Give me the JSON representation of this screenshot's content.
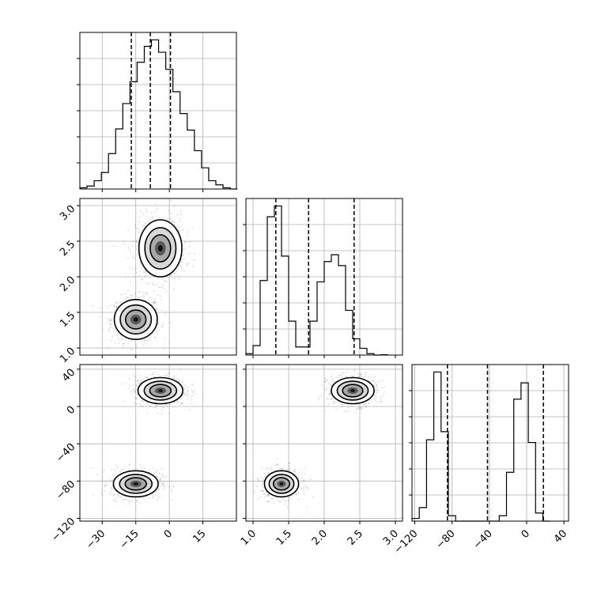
{
  "chart_data": {
    "type": "corner",
    "params": [
      {
        "ticks": [
          -30,
          -15,
          0,
          15
        ],
        "tick_labels": [
          "−30",
          "−15",
          "0",
          "15"
        ],
        "quantiles": [
          -17,
          -8.5,
          0.5
        ],
        "hist_x0": -40,
        "hist_bin": 3.2,
        "hist_counts": [
          0.2,
          0.5,
          1.4,
          2.8,
          6,
          10.2,
          14.5,
          18.2,
          21.5,
          24.2,
          25.3,
          23.2,
          20.3,
          16.5,
          12.8,
          10,
          6.5,
          3.6,
          1.4,
          0.7,
          0.2,
          0
        ]
      },
      {
        "ticks": [
          1.0,
          1.5,
          2.0,
          2.5,
          3.0
        ],
        "tick_labels": [
          "1.0",
          "1.5",
          "2.0",
          "2.5",
          "3.0"
        ],
        "quantiles": [
          1.32,
          1.78,
          2.42
        ],
        "hist_x0": 0.9,
        "hist_bin": 0.1,
        "hist_counts": [
          0.1,
          0.7,
          5.5,
          10.2,
          11,
          7.3,
          2.5,
          0.6,
          0.6,
          2.5,
          5.4,
          6.9,
          7.4,
          6.6,
          3.3,
          1.2,
          0.5,
          0.1,
          0,
          0.02
        ]
      },
      {
        "ticks": [
          -120,
          -80,
          -40,
          0,
          40
        ],
        "tick_labels": [
          "−120",
          "−80",
          "−40",
          "0",
          "40"
        ],
        "quantiles": [
          -85,
          -42,
          18
        ],
        "hist_x0": -123,
        "hist_bin": 7.8,
        "hist_counts": [
          0.1,
          0.5,
          3,
          5.5,
          3.3,
          0.2,
          0,
          0,
          0,
          0,
          0,
          0,
          0.2,
          1.8,
          4.5,
          5.1,
          2.9,
          0.3,
          0
        ]
      }
    ],
    "density_clusters": {
      "1_0": [
        {
          "mx": -15,
          "my": 1.4,
          "sx": 4.8,
          "sy": 0.14,
          "w": 0.5
        },
        {
          "mx": -4,
          "my": 2.4,
          "sx": 4.8,
          "sy": 0.2,
          "w": 0.5
        }
      ],
      "2_0": [
        {
          "mx": -15,
          "my": -83,
          "sx": 5,
          "sy": 7,
          "w": 0.5
        },
        {
          "mx": -4,
          "my": 17,
          "sx": 5,
          "sy": 7,
          "w": 0.5
        }
      ],
      "2_1": [
        {
          "mx": 1.4,
          "my": -83,
          "sx": 0.12,
          "sy": 7,
          "w": 0.5
        },
        {
          "mx": 2.4,
          "my": 17,
          "sx": 0.15,
          "sy": 7,
          "w": 0.5
        }
      ]
    },
    "grid": true,
    "contour_levels": 3
  }
}
